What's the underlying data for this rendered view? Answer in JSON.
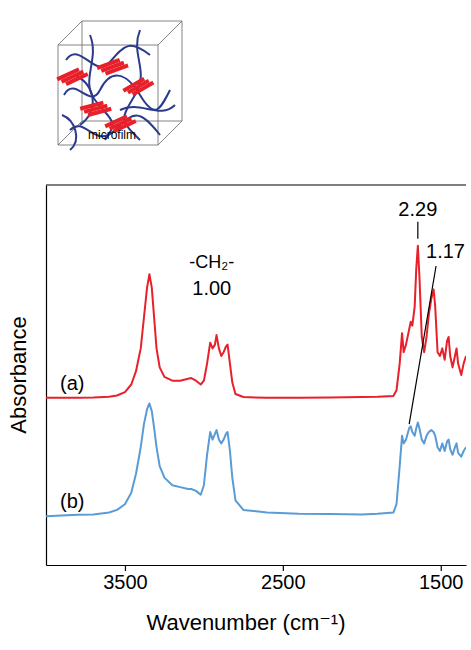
{
  "chart_data": {
    "type": "line",
    "x_label": "Wavenumber (cm⁻¹)",
    "y_label": "Absorbance",
    "inset_label": "microfilm",
    "xlim": [
      4000,
      1340
    ],
    "xticks": [
      3500,
      2500,
      1500
    ],
    "ylim": [
      0,
      10
    ],
    "yticks": [],
    "tick_labels": "x",
    "x": [
      4000,
      3900,
      3800,
      3700,
      3600,
      3550,
      3500,
      3460,
      3430,
      3400,
      3380,
      3360,
      3345,
      3330,
      3315,
      3300,
      3280,
      3250,
      3200,
      3150,
      3100,
      3080,
      3050,
      3020,
      3000,
      2980,
      2960,
      2945,
      2930,
      2920,
      2905,
      2890,
      2875,
      2860,
      2850,
      2835,
      2820,
      2800,
      2750,
      2600,
      2400,
      2200,
      2000,
      1900,
      1800,
      1780,
      1760,
      1745,
      1735,
      1720,
      1700,
      1690,
      1680,
      1665,
      1655,
      1645,
      1635,
      1620,
      1605,
      1590,
      1575,
      1560,
      1545,
      1535,
      1520,
      1505,
      1490,
      1475,
      1460,
      1450,
      1440,
      1425,
      1410,
      1400,
      1390,
      1370,
      1355,
      1340
    ],
    "series": [
      {
        "name": "(a)",
        "color": "#e8202a",
        "values": [
          4.4,
          4.4,
          4.4,
          4.41,
          4.43,
          4.46,
          4.55,
          4.75,
          5.1,
          5.7,
          6.5,
          7.3,
          7.65,
          7.3,
          6.5,
          5.7,
          5.2,
          4.95,
          4.85,
          4.85,
          4.9,
          4.92,
          4.85,
          4.75,
          4.85,
          5.3,
          5.85,
          5.7,
          5.8,
          6.05,
          5.7,
          5.5,
          5.6,
          5.75,
          5.8,
          5.3,
          4.8,
          4.5,
          4.42,
          4.4,
          4.4,
          4.41,
          4.42,
          4.43,
          4.45,
          4.6,
          5.3,
          6.1,
          5.6,
          5.8,
          6.2,
          6.4,
          6.3,
          6.8,
          7.8,
          8.4,
          7.6,
          6.0,
          5.6,
          6.0,
          6.6,
          7.0,
          7.25,
          6.8,
          5.6,
          5.5,
          5.7,
          5.4,
          5.9,
          6.0,
          5.5,
          5.2,
          5.5,
          5.7,
          5.3,
          5.0,
          5.3,
          5.5
        ]
      },
      {
        "name": "(b)",
        "color": "#5b9bd5",
        "values": [
          1.28,
          1.3,
          1.32,
          1.33,
          1.38,
          1.45,
          1.6,
          1.9,
          2.4,
          3.1,
          3.7,
          4.1,
          4.25,
          4.05,
          3.6,
          3.1,
          2.6,
          2.3,
          2.1,
          2.05,
          2.0,
          2.0,
          1.95,
          1.85,
          2.1,
          2.9,
          3.5,
          3.3,
          3.45,
          3.55,
          3.3,
          3.2,
          3.3,
          3.45,
          3.5,
          3.0,
          2.3,
          1.7,
          1.45,
          1.38,
          1.35,
          1.34,
          1.33,
          1.35,
          1.38,
          1.6,
          2.6,
          3.4,
          3.2,
          3.3,
          3.6,
          3.65,
          3.5,
          3.4,
          3.6,
          3.75,
          3.6,
          3.3,
          3.2,
          3.4,
          3.5,
          3.55,
          3.5,
          3.4,
          3.1,
          3.0,
          3.2,
          3.0,
          3.25,
          3.3,
          3.05,
          2.9,
          3.1,
          3.2,
          2.95,
          2.85,
          3.0,
          3.1
        ]
      }
    ],
    "annotations": [
      {
        "text": "-CH₂-",
        "x": 2950
      },
      {
        "text": "1.00",
        "x": 2950,
        "series": 0
      },
      {
        "text": "2.29",
        "x": 1645,
        "series": 0
      },
      {
        "text": "1.17",
        "x": 1700,
        "series": 1
      }
    ]
  }
}
